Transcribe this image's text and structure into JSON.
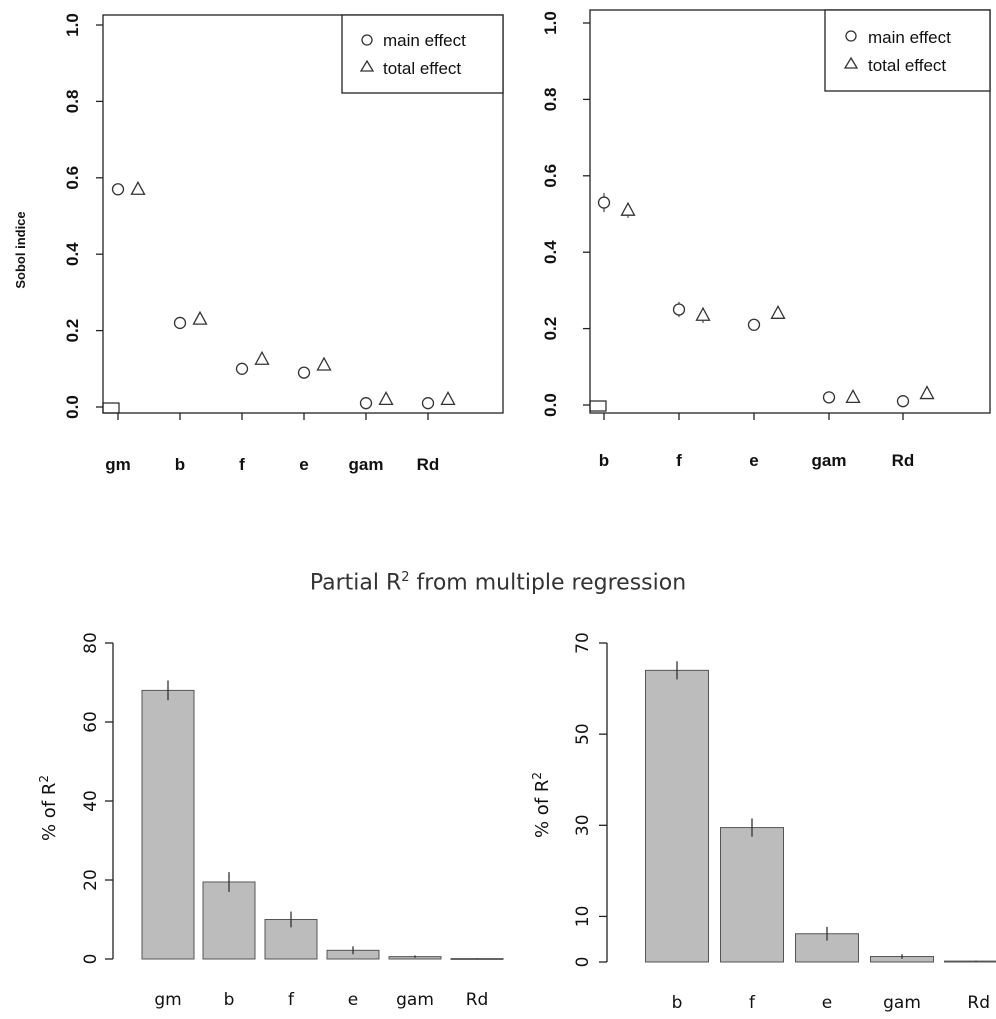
{
  "regression_title": {
    "prefix": "Partial R",
    "superscript": "2",
    "suffix": " from multiple regression"
  },
  "chart_data": [
    {
      "type": "scatter",
      "panel": "sobol-left",
      "ylabel": "Sobol indice",
      "ylim": [
        0,
        1
      ],
      "yticks": [
        "0.0",
        "0.2",
        "0.4",
        "0.6",
        "0.8",
        "1.0"
      ],
      "categories": [
        "gm",
        "b",
        "f",
        "e",
        "gam",
        "Rd"
      ],
      "legend_position": "top-right",
      "legend": [
        "main effect",
        "total effect"
      ],
      "series": [
        {
          "name": "main effect",
          "marker": "circle",
          "values": [
            0.57,
            0.22,
            0.1,
            0.09,
            0.01,
            0.01
          ],
          "err": [
            0.015,
            0.01,
            0.01,
            0.01,
            0.01,
            0.01
          ]
        },
        {
          "name": "total effect",
          "marker": "triangle",
          "values": [
            0.57,
            0.23,
            0.125,
            0.11,
            0.02,
            0.02
          ],
          "err": [
            0.015,
            0.01,
            0.01,
            0.01,
            0.01,
            0.01
          ]
        }
      ]
    },
    {
      "type": "scatter",
      "panel": "sobol-right",
      "ylabel": "",
      "ylim": [
        0,
        1
      ],
      "yticks": [
        "0.0",
        "0.2",
        "0.4",
        "0.6",
        "0.8",
        "1.0"
      ],
      "categories": [
        "b",
        "f",
        "e",
        "gam",
        "Rd"
      ],
      "legend_position": "top-right",
      "legend": [
        "main effect",
        "total effect"
      ],
      "series": [
        {
          "name": "main effect",
          "marker": "circle",
          "values": [
            0.53,
            0.25,
            0.21,
            0.02,
            0.01
          ],
          "err": [
            0.025,
            0.02,
            0.015,
            0.015,
            0.015
          ]
        },
        {
          "name": "total effect",
          "marker": "triangle",
          "values": [
            0.51,
            0.235,
            0.24,
            0.02,
            0.03
          ],
          "err": [
            0.02,
            0.02,
            0.015,
            0.01,
            0.01
          ]
        }
      ]
    },
    {
      "type": "bar",
      "panel": "r2-left",
      "ylabel": "% of R",
      "ylabel_sup": "2",
      "ylim": [
        0,
        80
      ],
      "yticks": [
        "0",
        "20",
        "40",
        "60",
        "80"
      ],
      "categories": [
        "gm",
        "b",
        "f",
        "e",
        "gam",
        "Rd"
      ],
      "values": [
        68,
        19.5,
        10,
        2.2,
        0.6,
        0.1
      ],
      "err": [
        2.5,
        2.5,
        2.0,
        1.0,
        0.3,
        0.1
      ]
    },
    {
      "type": "bar",
      "panel": "r2-right",
      "ylabel": "% of R",
      "ylabel_sup": "2",
      "ylim": [
        0,
        70
      ],
      "yticks": [
        "0",
        "10",
        "30",
        "50",
        "70"
      ],
      "categories": [
        "b",
        "f",
        "e",
        "gam",
        "Rd"
      ],
      "values": [
        64,
        29.5,
        6.2,
        1.2,
        0.2
      ],
      "err": [
        2.0,
        2.0,
        1.5,
        0.5,
        0.1
      ]
    }
  ]
}
